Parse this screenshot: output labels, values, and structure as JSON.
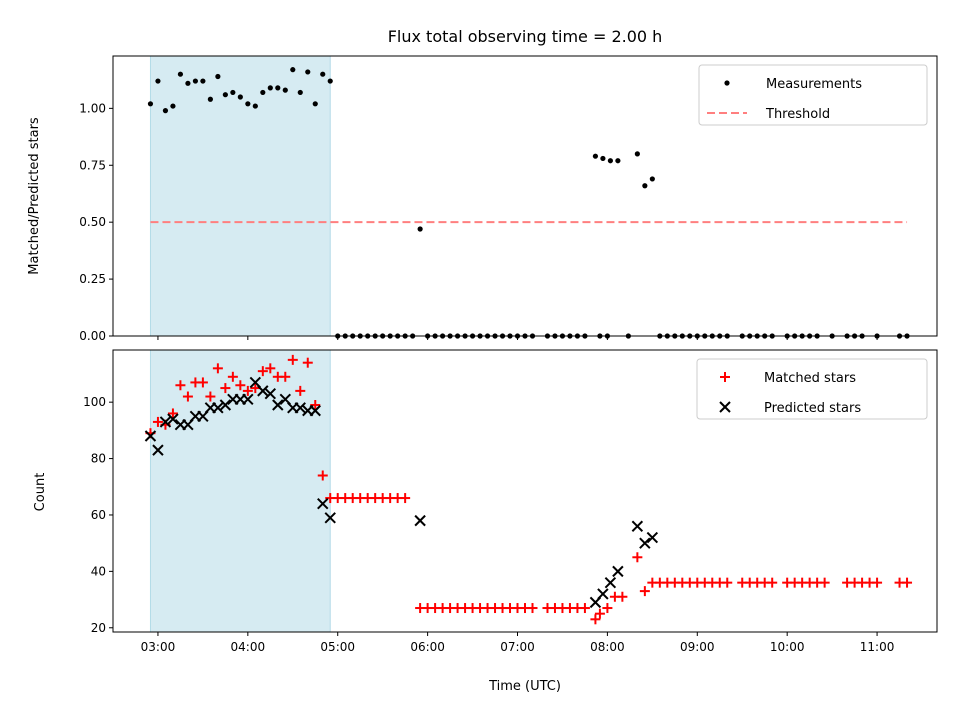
{
  "chart_data": [
    {
      "type": "scatter",
      "title": "Flux total observing time = 2.00 h",
      "xlabel": "",
      "ylabel": "Matched/Predicted stars",
      "ylim": [
        0,
        1.23
      ],
      "yticks": [
        "0.00",
        "0.25",
        "0.50",
        "0.75",
        "1.00"
      ],
      "ytick_values": [
        0,
        0.25,
        0.5,
        0.75,
        1.0
      ],
      "xlim": [
        "02:30",
        "11:40"
      ],
      "xticks": [
        "03:00",
        "04:00",
        "05:00",
        "06:00",
        "07:00",
        "08:00",
        "09:00",
        "10:00",
        "11:00"
      ],
      "xtick_labels_visible": false,
      "shaded_region": {
        "x_start": "02:55",
        "x_end": "04:55",
        "color": "#add8e6"
      },
      "legend_position": "upper right",
      "series": [
        {
          "name": "Measurements",
          "marker": "dot",
          "color": "#000000",
          "points": [
            [
              "02:55",
              1.02
            ],
            [
              "03:00",
              1.12
            ],
            [
              "03:05",
              0.99
            ],
            [
              "03:10",
              1.01
            ],
            [
              "03:15",
              1.15
            ],
            [
              "03:20",
              1.11
            ],
            [
              "03:25",
              1.12
            ],
            [
              "03:30",
              1.12
            ],
            [
              "03:35",
              1.04
            ],
            [
              "03:40",
              1.14
            ],
            [
              "03:45",
              1.06
            ],
            [
              "03:50",
              1.07
            ],
            [
              "03:55",
              1.05
            ],
            [
              "04:00",
              1.02
            ],
            [
              "04:05",
              1.01
            ],
            [
              "04:10",
              1.07
            ],
            [
              "04:15",
              1.09
            ],
            [
              "04:20",
              1.09
            ],
            [
              "04:25",
              1.08
            ],
            [
              "04:30",
              1.17
            ],
            [
              "04:35",
              1.07
            ],
            [
              "04:40",
              1.16
            ],
            [
              "04:45",
              1.02
            ],
            [
              "04:50",
              1.15
            ],
            [
              "04:55",
              1.12
            ],
            [
              "05:00",
              0
            ],
            [
              "05:05",
              0
            ],
            [
              "05:10",
              0
            ],
            [
              "05:15",
              0
            ],
            [
              "05:20",
              0
            ],
            [
              "05:25",
              0
            ],
            [
              "05:30",
              0
            ],
            [
              "05:35",
              0
            ],
            [
              "05:40",
              0
            ],
            [
              "05:45",
              0
            ],
            [
              "05:50",
              0
            ],
            [
              "05:55",
              0.47
            ],
            [
              "06:00",
              0
            ],
            [
              "06:05",
              0
            ],
            [
              "06:10",
              0
            ],
            [
              "06:15",
              0
            ],
            [
              "06:20",
              0
            ],
            [
              "06:25",
              0
            ],
            [
              "06:30",
              0
            ],
            [
              "06:35",
              0
            ],
            [
              "06:40",
              0
            ],
            [
              "06:45",
              0
            ],
            [
              "06:50",
              0
            ],
            [
              "06:55",
              0
            ],
            [
              "07:00",
              0
            ],
            [
              "07:05",
              0
            ],
            [
              "07:10",
              0
            ],
            [
              "07:20",
              0
            ],
            [
              "07:25",
              0
            ],
            [
              "07:30",
              0
            ],
            [
              "07:35",
              0
            ],
            [
              "07:40",
              0
            ],
            [
              "07:45",
              0
            ],
            [
              "07:55",
              0
            ],
            [
              "08:00",
              0
            ],
            [
              "07:52",
              0.79
            ],
            [
              "07:57",
              0.78
            ],
            [
              "08:02",
              0.77
            ],
            [
              "08:07",
              0.77
            ],
            [
              "08:14",
              0
            ],
            [
              "08:20",
              0.8
            ],
            [
              "08:25",
              0.66
            ],
            [
              "08:30",
              0.69
            ],
            [
              "08:35",
              0
            ],
            [
              "08:40",
              0
            ],
            [
              "08:45",
              0
            ],
            [
              "08:50",
              0
            ],
            [
              "08:55",
              0
            ],
            [
              "09:00",
              0
            ],
            [
              "09:05",
              0
            ],
            [
              "09:10",
              0
            ],
            [
              "09:15",
              0
            ],
            [
              "09:20",
              0
            ],
            [
              "09:30",
              0
            ],
            [
              "09:35",
              0
            ],
            [
              "09:40",
              0
            ],
            [
              "09:45",
              0
            ],
            [
              "09:50",
              0
            ],
            [
              "10:00",
              0
            ],
            [
              "10:05",
              0
            ],
            [
              "10:10",
              0
            ],
            [
              "10:15",
              0
            ],
            [
              "10:20",
              0
            ],
            [
              "10:30",
              0
            ],
            [
              "10:40",
              0
            ],
            [
              "10:45",
              0
            ],
            [
              "10:50",
              0
            ],
            [
              "11:00",
              0
            ],
            [
              "11:15",
              0
            ],
            [
              "11:20",
              0
            ]
          ]
        },
        {
          "name": "Threshold",
          "marker": "dashed-line",
          "color": "#ff7f7f",
          "points": [
            [
              "02:55",
              0.5
            ],
            [
              "11:20",
              0.5
            ]
          ]
        }
      ]
    },
    {
      "type": "scatter",
      "title": "",
      "xlabel": "Time (UTC)",
      "ylabel": "Count",
      "ylim": [
        18.5,
        118.5
      ],
      "yticks": [
        "20",
        "40",
        "60",
        "80",
        "100"
      ],
      "ytick_values": [
        20,
        40,
        60,
        80,
        100
      ],
      "xlim": [
        "02:30",
        "11:40"
      ],
      "xticks": [
        "03:00",
        "04:00",
        "05:00",
        "06:00",
        "07:00",
        "08:00",
        "09:00",
        "10:00",
        "11:00"
      ],
      "xtick_labels_visible": true,
      "shaded_region": {
        "x_start": "02:55",
        "x_end": "04:55",
        "color": "#add8e6"
      },
      "legend_position": "upper right",
      "series": [
        {
          "name": "Matched stars",
          "marker": "plus",
          "color": "#ff0000",
          "points": [
            [
              "02:55",
              89
            ],
            [
              "03:00",
              93
            ],
            [
              "03:05",
              92
            ],
            [
              "03:10",
              96
            ],
            [
              "03:15",
              106
            ],
            [
              "03:20",
              102
            ],
            [
              "03:25",
              107
            ],
            [
              "03:30",
              107
            ],
            [
              "03:35",
              102
            ],
            [
              "03:40",
              112
            ],
            [
              "03:45",
              105
            ],
            [
              "03:50",
              109
            ],
            [
              "03:55",
              106
            ],
            [
              "04:00",
              104
            ],
            [
              "04:05",
              105
            ],
            [
              "04:10",
              111
            ],
            [
              "04:15",
              112
            ],
            [
              "04:20",
              109
            ],
            [
              "04:25",
              109
            ],
            [
              "04:30",
              115
            ],
            [
              "04:35",
              104
            ],
            [
              "04:40",
              114
            ],
            [
              "04:45",
              99
            ],
            [
              "04:50",
              74
            ],
            [
              "04:55",
              66
            ],
            [
              "05:00",
              66
            ],
            [
              "05:05",
              66
            ],
            [
              "05:10",
              66
            ],
            [
              "05:15",
              66
            ],
            [
              "05:20",
              66
            ],
            [
              "05:25",
              66
            ],
            [
              "05:30",
              66
            ],
            [
              "05:35",
              66
            ],
            [
              "05:40",
              66
            ],
            [
              "05:45",
              66
            ],
            [
              "05:55",
              27
            ],
            [
              "06:00",
              27
            ],
            [
              "06:05",
              27
            ],
            [
              "06:10",
              27
            ],
            [
              "06:15",
              27
            ],
            [
              "06:20",
              27
            ],
            [
              "06:25",
              27
            ],
            [
              "06:30",
              27
            ],
            [
              "06:35",
              27
            ],
            [
              "06:40",
              27
            ],
            [
              "06:45",
              27
            ],
            [
              "06:50",
              27
            ],
            [
              "06:55",
              27
            ],
            [
              "07:00",
              27
            ],
            [
              "07:05",
              27
            ],
            [
              "07:10",
              27
            ],
            [
              "07:20",
              27
            ],
            [
              "07:25",
              27
            ],
            [
              "07:30",
              27
            ],
            [
              "07:35",
              27
            ],
            [
              "07:40",
              27
            ],
            [
              "07:45",
              27
            ],
            [
              "07:52",
              23
            ],
            [
              "07:55",
              25
            ],
            [
              "08:00",
              27
            ],
            [
              "08:05",
              31
            ],
            [
              "08:10",
              31
            ],
            [
              "08:20",
              45
            ],
            [
              "08:25",
              33
            ],
            [
              "08:30",
              36
            ],
            [
              "08:35",
              36
            ],
            [
              "08:40",
              36
            ],
            [
              "08:45",
              36
            ],
            [
              "08:50",
              36
            ],
            [
              "08:55",
              36
            ],
            [
              "09:00",
              36
            ],
            [
              "09:05",
              36
            ],
            [
              "09:10",
              36
            ],
            [
              "09:15",
              36
            ],
            [
              "09:20",
              36
            ],
            [
              "09:30",
              36
            ],
            [
              "09:35",
              36
            ],
            [
              "09:40",
              36
            ],
            [
              "09:45",
              36
            ],
            [
              "09:50",
              36
            ],
            [
              "10:00",
              36
            ],
            [
              "10:05",
              36
            ],
            [
              "10:10",
              36
            ],
            [
              "10:15",
              36
            ],
            [
              "10:20",
              36
            ],
            [
              "10:25",
              36
            ],
            [
              "10:40",
              36
            ],
            [
              "10:45",
              36
            ],
            [
              "10:50",
              36
            ],
            [
              "10:55",
              36
            ],
            [
              "11:00",
              36
            ],
            [
              "11:15",
              36
            ],
            [
              "11:20",
              36
            ]
          ]
        },
        {
          "name": "Predicted stars",
          "marker": "x",
          "color": "#000000",
          "points": [
            [
              "02:55",
              88
            ],
            [
              "03:00",
              83
            ],
            [
              "03:05",
              93
            ],
            [
              "03:10",
              94
            ],
            [
              "03:15",
              92
            ],
            [
              "03:20",
              92
            ],
            [
              "03:25",
              95
            ],
            [
              "03:30",
              95
            ],
            [
              "03:35",
              98
            ],
            [
              "03:40",
              98
            ],
            [
              "03:45",
              99
            ],
            [
              "03:50",
              101
            ],
            [
              "03:55",
              101
            ],
            [
              "04:00",
              101
            ],
            [
              "04:05",
              107
            ],
            [
              "04:10",
              104
            ],
            [
              "04:15",
              103
            ],
            [
              "04:20",
              99
            ],
            [
              "04:25",
              101
            ],
            [
              "04:30",
              98
            ],
            [
              "04:35",
              98
            ],
            [
              "04:40",
              97
            ],
            [
              "04:45",
              97
            ],
            [
              "04:50",
              64
            ],
            [
              "04:55",
              59
            ],
            [
              "05:55",
              58
            ],
            [
              "07:52",
              29
            ],
            [
              "07:57",
              32
            ],
            [
              "08:02",
              36
            ],
            [
              "08:07",
              40
            ],
            [
              "08:20",
              56
            ],
            [
              "08:25",
              50
            ],
            [
              "08:30",
              52
            ]
          ]
        }
      ]
    }
  ]
}
